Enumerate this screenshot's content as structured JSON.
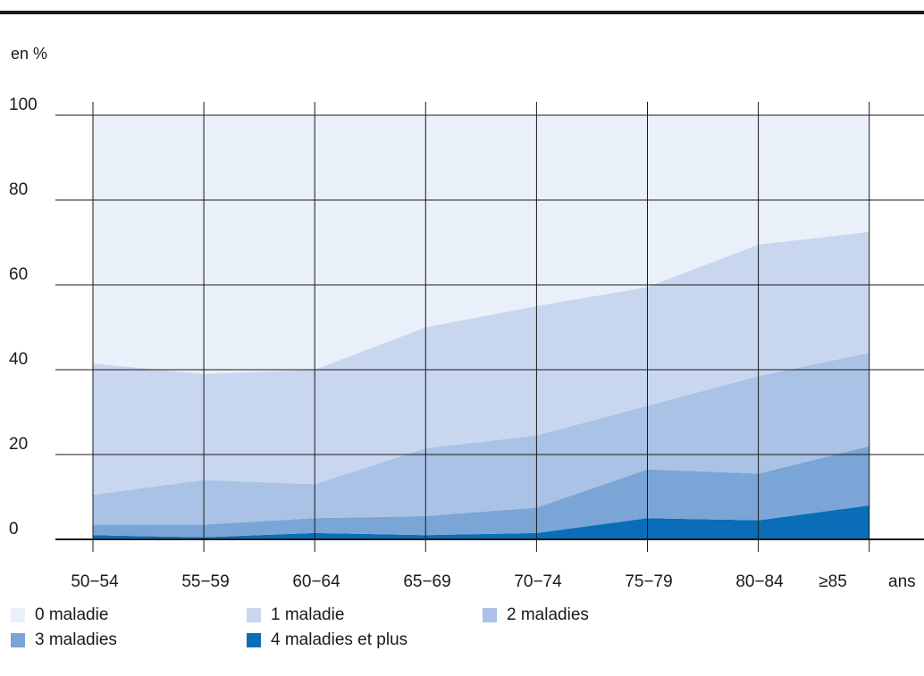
{
  "chart_data": {
    "type": "area",
    "stacked": true,
    "y_unit_label": "en %",
    "x_unit_label": "ans",
    "categories": [
      "50−54",
      "55−59",
      "60−64",
      "65−69",
      "70−74",
      "75−79",
      "80−84",
      "≥85"
    ],
    "ylim": [
      0,
      100
    ],
    "yticks": [
      0,
      20,
      40,
      60,
      80,
      100
    ],
    "grid": true,
    "legend_position": "bottom",
    "series": [
      {
        "name": "4 maladies et plus",
        "color": "#0a6db8",
        "values": [
          1,
          0.5,
          1.5,
          1,
          1.5,
          5,
          4.5,
          8
        ]
      },
      {
        "name": "3 maladies",
        "color": "#7aa5d6",
        "values": [
          2.5,
          3,
          3.5,
          4.5,
          6,
          11.5,
          11,
          14
        ]
      },
      {
        "name": "2 maladies",
        "color": "#a9c2e6",
        "values": [
          7,
          10.5,
          8,
          16,
          17,
          15,
          23,
          22
        ]
      },
      {
        "name": "1 maladie",
        "color": "#c8d7ef",
        "values": [
          31,
          25,
          27,
          28.5,
          30.5,
          28,
          31,
          28.5
        ]
      },
      {
        "name": "0 maladie",
        "color": "#eaf0f9",
        "values": [
          58.5,
          61,
          60,
          50,
          45,
          40.5,
          30.5,
          27.5
        ]
      }
    ]
  },
  "legend": [
    {
      "label": "0 maladie",
      "color": "#eaf0f9"
    },
    {
      "label": "1 maladie",
      "color": "#c8d7ef"
    },
    {
      "label": "2 maladies",
      "color": "#a9c2e6"
    },
    {
      "label": "3 maladies",
      "color": "#7aa5d6"
    },
    {
      "label": "4 maladies et plus",
      "color": "#0a6db8"
    }
  ]
}
